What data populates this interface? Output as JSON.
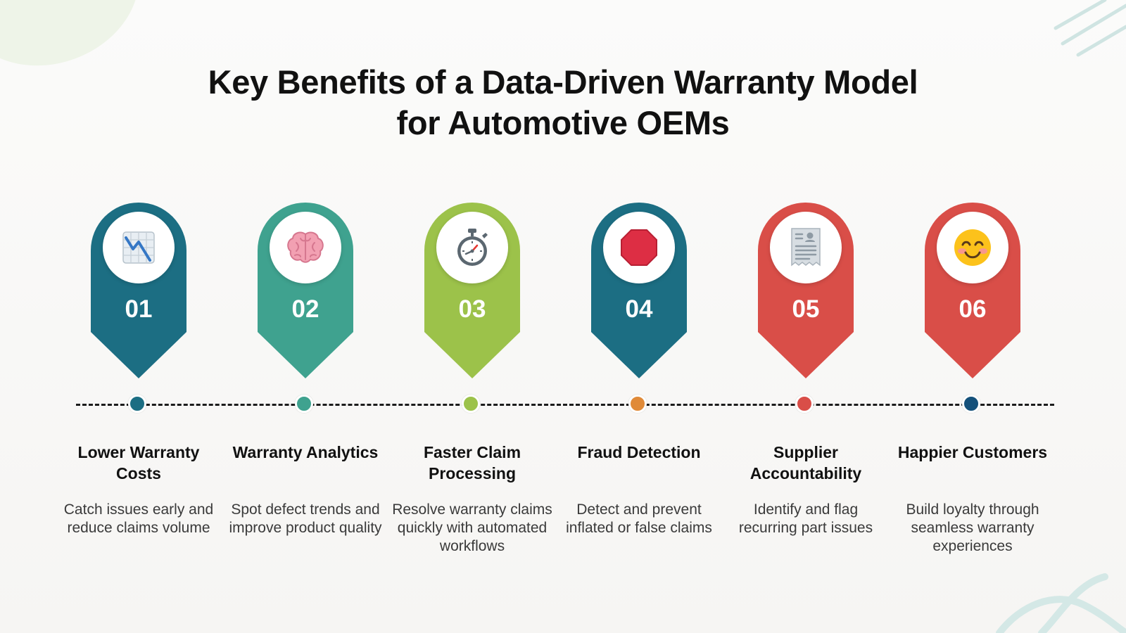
{
  "title": {
    "line1": "Key Benefits of a Data-Driven Warranty Model",
    "line2": "for Automotive OEMs"
  },
  "steps": [
    {
      "number": "01",
      "heading": "Lower Warranty Costs",
      "description": "Catch issues early and reduce claims volume",
      "icon": "chart-decreasing-icon",
      "color": "#1c6e83",
      "dot_color": "#1c6e83"
    },
    {
      "number": "02",
      "heading": "Warranty Analytics",
      "description": "Spot defect trends and improve product quality",
      "icon": "brain-icon",
      "color": "#3fa28f",
      "dot_color": "#3fa28f"
    },
    {
      "number": "03",
      "heading": "Faster Claim Processing",
      "description": "Resolve warranty claims quickly with automated workflows",
      "icon": "stopwatch-icon",
      "color": "#9cc24a",
      "dot_color": "#9cc24a"
    },
    {
      "number": "04",
      "heading": "Fraud Detection",
      "description": "Detect and prevent inflated or false claims",
      "icon": "stop-sign-icon",
      "color": "#1c6e83",
      "dot_color": "#e08a38"
    },
    {
      "number": "05",
      "heading": "Supplier Accountability",
      "description": "Identify and flag recurring part issues",
      "icon": "receipt-icon",
      "color": "#d94e48",
      "dot_color": "#d94e48"
    },
    {
      "number": "06",
      "heading": "Happier Customers",
      "description": "Build loyalty through seamless warranty experiences",
      "icon": "smiling-face-icon",
      "color": "#d94e48",
      "dot_color": "#14507a"
    }
  ]
}
